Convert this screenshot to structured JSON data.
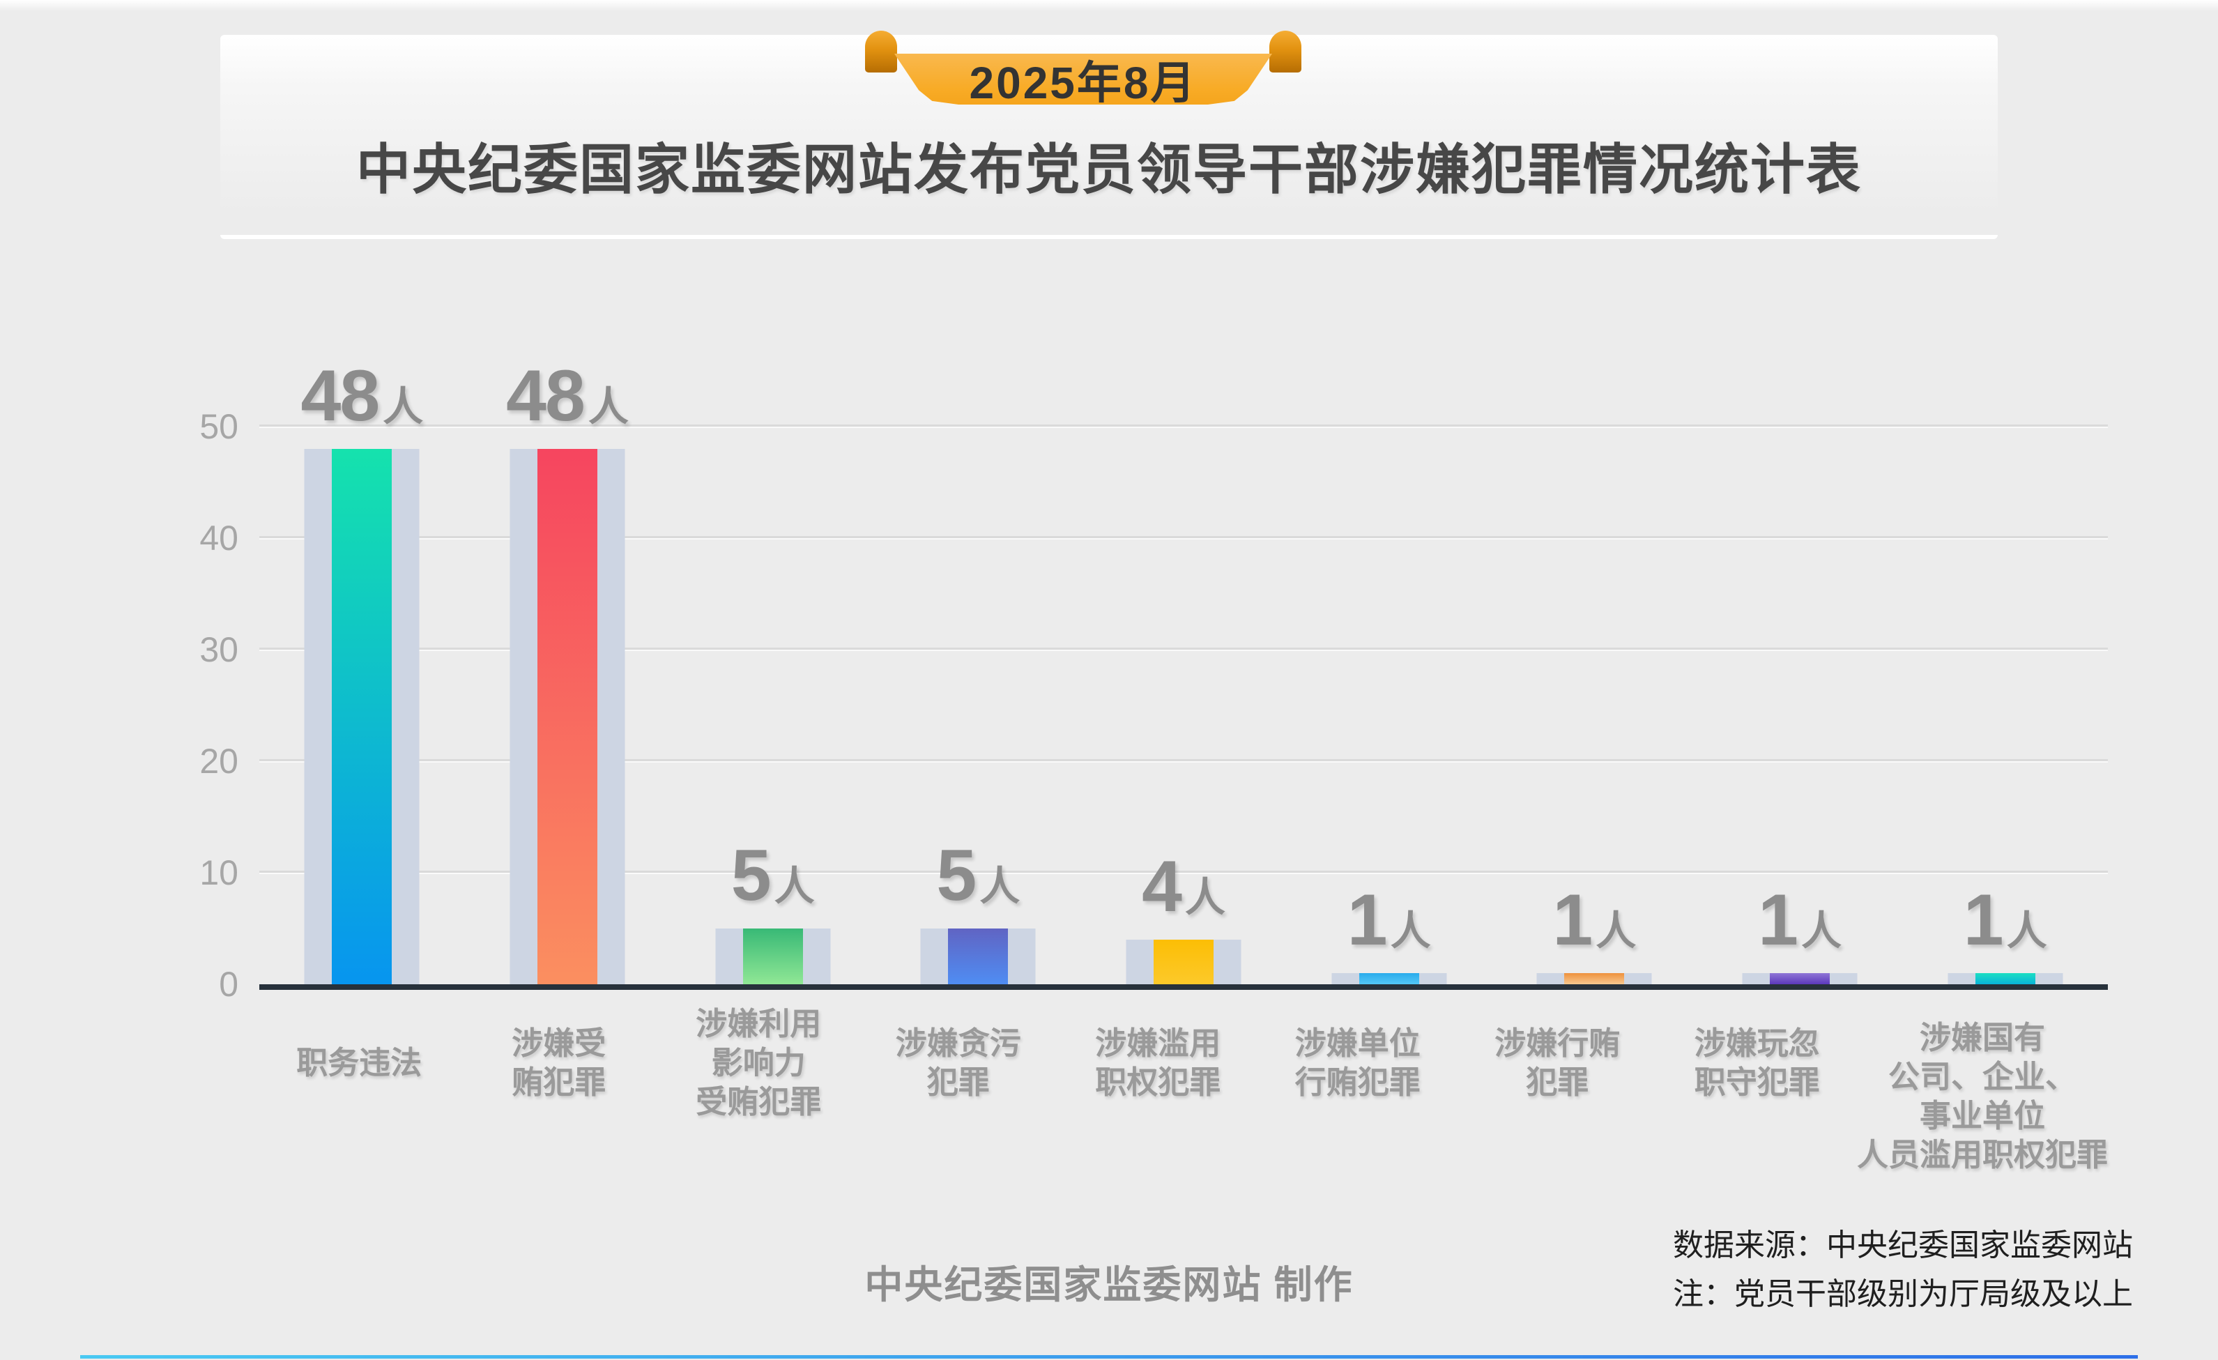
{
  "header": {
    "date_badge": "2025年8月",
    "title": "中央纪委国家监委网站发布党员领导干部涉嫌犯罪情况统计表"
  },
  "chart_data": {
    "type": "bar",
    "title": "中央纪委国家监委网站发布党员领导干部涉嫌犯罪情况统计表",
    "subtitle": "2025年8月",
    "categories": [
      "职务违法",
      "涉嫌受贿犯罪",
      "涉嫌利用影响力受贿犯罪",
      "涉嫌贪污犯罪",
      "涉嫌滥用职权犯罪",
      "涉嫌单位行贿犯罪",
      "涉嫌行贿犯罪",
      "涉嫌玩忽职守犯罪",
      "涉嫌国有公司、企业、事业单位人员滥用职权犯罪"
    ],
    "category_lines": [
      [
        "职务违法"
      ],
      [
        "涉嫌受",
        "贿犯罪"
      ],
      [
        "涉嫌利用",
        "影响力",
        "受贿犯罪"
      ],
      [
        "涉嫌贪污",
        "犯罪"
      ],
      [
        "涉嫌滥用",
        "职权犯罪"
      ],
      [
        "涉嫌单位",
        "行贿犯罪"
      ],
      [
        "涉嫌行贿",
        "犯罪"
      ],
      [
        "涉嫌玩忽",
        "职守犯罪"
      ],
      [
        "涉嫌国有",
        "公司、企业、",
        "事业单位",
        "人员滥用职权犯罪"
      ]
    ],
    "values": [
      48,
      48,
      5,
      5,
      4,
      1,
      1,
      1,
      1
    ],
    "value_suffix": "人",
    "y_ticks": [
      0,
      10,
      20,
      30,
      40,
      50
    ],
    "ylim": [
      0,
      52
    ],
    "xlabel": "",
    "ylabel": "",
    "grid": true,
    "legend": false,
    "bar_gradients": [
      [
        "#15e2ad",
        "#0795ef"
      ],
      [
        "#f6455f",
        "#fb8f60"
      ],
      [
        "#38b976",
        "#90e795"
      ],
      [
        "#6064c3",
        "#4f8df3"
      ],
      [
        "#fcbe05",
        "#fcc92a"
      ],
      [
        "#29abec",
        "#54c8f7"
      ],
      [
        "#ee913c",
        "#f8c88f"
      ],
      [
        "#8f76d6",
        "#5c38bc"
      ],
      [
        "#1bdfc2",
        "#09b3d9"
      ]
    ],
    "track_color": "#cdd5e3",
    "axis_color": "#27313b",
    "value_label_color": "#8c8c8c"
  },
  "footer": {
    "credit": "中央纪委国家监委网站 制作"
  },
  "notes": {
    "source": "数据来源：中央纪委国家监委网站",
    "note": "注：党员干部级别为厅局级及以上"
  },
  "colors": {
    "background": "#ececec",
    "ribbon_orange": "#f8ab26",
    "ribbon_curl_dark": "#b66d03",
    "title_text": "#474747",
    "label_gray": "#9a9a9a"
  }
}
